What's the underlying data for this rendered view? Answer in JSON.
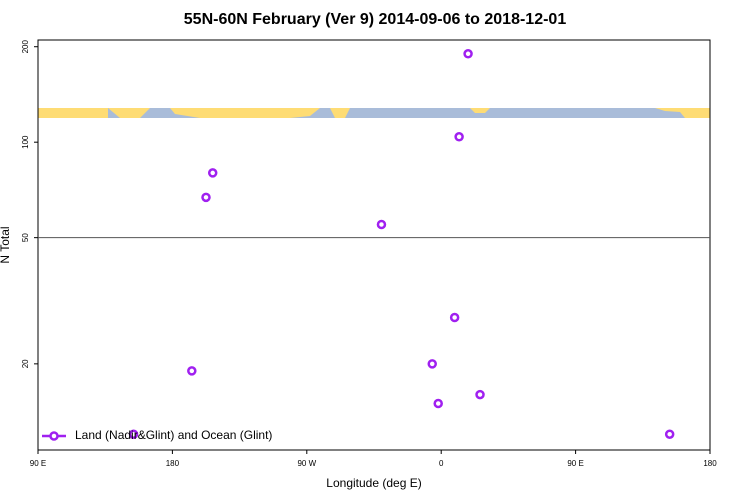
{
  "chart_data": {
    "type": "scatter",
    "title": "55N-60N February (Ver 9)   2014-09-06 to 2018-12-01",
    "x_label": "Longitude (deg E)",
    "y_label": "N Total",
    "xlim": [
      90,
      540
    ],
    "xticks": [
      {
        "value": 90,
        "label": "90 E"
      },
      180,
      {
        "value": 270,
        "label": "90 W"
      },
      {
        "value": 360,
        "label": "0"
      },
      {
        "value": 450,
        "label": "90 E"
      },
      {
        "value": 540,
        "label": "180"
      }
    ],
    "ylim": [
      10.7,
      210
    ],
    "yscale": "log",
    "yticks": [
      20,
      50,
      100,
      200
    ],
    "hline": 50,
    "legend": "bottom-left",
    "series": [
      {
        "name": "Land (Nadir&Glint) and Ocean (Glint)",
        "color": "#a020f0",
        "x": [
          378,
          372,
          207,
          202.5,
          320,
          369,
          354,
          193,
          386,
          358,
          154,
          513
        ],
        "values": [
          190,
          104,
          80,
          67,
          55,
          28,
          20,
          19,
          16,
          15,
          12,
          12
        ]
      }
    ]
  }
}
